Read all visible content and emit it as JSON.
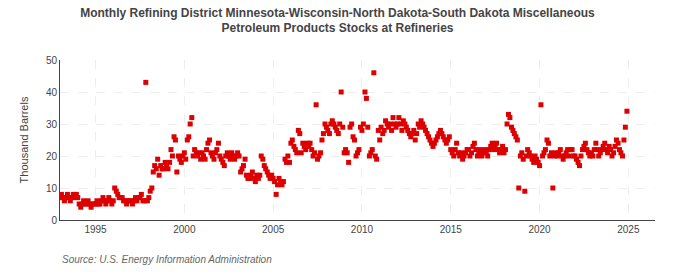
{
  "chart_data": {
    "type": "scatter",
    "title": "Monthly Refining District Minnesota-Wisconsin-North Dakota-South Dakota Miscellaneous\nPetroleum Products Stocks at Refineries",
    "ylabel": "Thousand Barrels",
    "annotations": [
      "Source: U.S. Energy Information Administration"
    ],
    "xlim": [
      1993.0,
      2026.5
    ],
    "ylim": [
      0,
      50
    ],
    "xticks": [
      1995,
      2000,
      2005,
      2010,
      2015,
      2020,
      2025
    ],
    "yticks": [
      0,
      10,
      20,
      30,
      40,
      50
    ],
    "grid": true,
    "color": "#dd0000",
    "marker": "square",
    "x": [
      1993.0,
      1993.08,
      1993.17,
      1993.25,
      1993.33,
      1993.42,
      1993.5,
      1993.58,
      1993.67,
      1993.75,
      1993.83,
      1993.92,
      1994.0,
      1994.08,
      1994.17,
      1994.25,
      1994.33,
      1994.42,
      1994.5,
      1994.58,
      1994.67,
      1994.75,
      1994.83,
      1994.92,
      1995.0,
      1995.08,
      1995.17,
      1995.25,
      1995.33,
      1995.42,
      1995.5,
      1995.58,
      1995.67,
      1995.75,
      1995.83,
      1995.92,
      1996.0,
      1996.08,
      1996.17,
      1996.25,
      1996.33,
      1996.42,
      1996.5,
      1996.58,
      1996.67,
      1996.75,
      1996.83,
      1996.92,
      1997.0,
      1997.08,
      1997.17,
      1997.25,
      1997.33,
      1997.42,
      1997.5,
      1997.58,
      1997.67,
      1997.75,
      1997.83,
      1997.92,
      1998.0,
      1998.08,
      1998.17,
      1998.25,
      1998.33,
      1998.42,
      1998.5,
      1998.58,
      1998.67,
      1998.75,
      1998.83,
      1998.92,
      1999.0,
      1999.08,
      1999.17,
      1999.25,
      1999.33,
      1999.42,
      1999.5,
      1999.58,
      1999.67,
      1999.75,
      1999.83,
      1999.92,
      2000.0,
      2000.08,
      2000.17,
      2000.25,
      2000.33,
      2000.42,
      2000.5,
      2000.58,
      2000.67,
      2000.75,
      2000.83,
      2000.92,
      2001.0,
      2001.08,
      2001.17,
      2001.25,
      2001.33,
      2001.42,
      2001.5,
      2001.58,
      2001.67,
      2001.75,
      2001.83,
      2001.92,
      2002.0,
      2002.08,
      2002.17,
      2002.25,
      2002.33,
      2002.42,
      2002.5,
      2002.58,
      2002.67,
      2002.75,
      2002.83,
      2002.92,
      2003.0,
      2003.08,
      2003.17,
      2003.25,
      2003.33,
      2003.42,
      2003.5,
      2003.58,
      2003.67,
      2003.75,
      2003.83,
      2003.92,
      2004.0,
      2004.08,
      2004.17,
      2004.25,
      2004.33,
      2004.42,
      2004.5,
      2004.58,
      2004.67,
      2004.75,
      2004.83,
      2004.92,
      2005.0,
      2005.08,
      2005.17,
      2005.25,
      2005.33,
      2005.42,
      2005.5,
      2005.58,
      2005.67,
      2005.75,
      2005.83,
      2005.92,
      2006.0,
      2006.08,
      2006.17,
      2006.25,
      2006.33,
      2006.42,
      2006.5,
      2006.58,
      2006.67,
      2006.75,
      2006.83,
      2006.92,
      2007.0,
      2007.08,
      2007.17,
      2007.25,
      2007.33,
      2007.42,
      2007.5,
      2007.58,
      2007.67,
      2007.75,
      2007.83,
      2007.92,
      2008.0,
      2008.08,
      2008.17,
      2008.25,
      2008.33,
      2008.42,
      2008.5,
      2008.58,
      2008.67,
      2008.75,
      2008.83,
      2008.92,
      2009.0,
      2009.08,
      2009.17,
      2009.25,
      2009.33,
      2009.42,
      2009.5,
      2009.58,
      2009.67,
      2009.75,
      2009.83,
      2009.92,
      2010.0,
      2010.08,
      2010.17,
      2010.25,
      2010.33,
      2010.42,
      2010.5,
      2010.58,
      2010.67,
      2010.75,
      2010.83,
      2010.92,
      2011.0,
      2011.08,
      2011.17,
      2011.25,
      2011.33,
      2011.42,
      2011.5,
      2011.58,
      2011.67,
      2011.75,
      2011.83,
      2011.92,
      2012.0,
      2012.08,
      2012.17,
      2012.25,
      2012.33,
      2012.42,
      2012.5,
      2012.58,
      2012.67,
      2012.75,
      2012.83,
      2012.92,
      2013.0,
      2013.08,
      2013.17,
      2013.25,
      2013.33,
      2013.42,
      2013.5,
      2013.58,
      2013.67,
      2013.75,
      2013.83,
      2013.92,
      2014.0,
      2014.08,
      2014.17,
      2014.25,
      2014.33,
      2014.42,
      2014.5,
      2014.58,
      2014.67,
      2014.75,
      2014.83,
      2014.92,
      2015.0,
      2015.08,
      2015.17,
      2015.25,
      2015.33,
      2015.42,
      2015.5,
      2015.58,
      2015.67,
      2015.75,
      2015.83,
      2015.92,
      2016.0,
      2016.08,
      2016.17,
      2016.25,
      2016.33,
      2016.42,
      2016.5,
      2016.58,
      2016.67,
      2016.75,
      2016.83,
      2016.92,
      2017.0,
      2017.08,
      2017.17,
      2017.25,
      2017.33,
      2017.42,
      2017.5,
      2017.58,
      2017.67,
      2017.75,
      2017.83,
      2017.92,
      2018.0,
      2018.08,
      2018.17,
      2018.25,
      2018.33,
      2018.42,
      2018.5,
      2018.58,
      2018.67,
      2018.75,
      2018.83,
      2018.92,
      2019.0,
      2019.08,
      2019.17,
      2019.25,
      2019.33,
      2019.42,
      2019.5,
      2019.58,
      2019.67,
      2019.75,
      2019.83,
      2019.92,
      2020.0,
      2020.08,
      2020.17,
      2020.25,
      2020.33,
      2020.42,
      2020.5,
      2020.58,
      2020.67,
      2020.75,
      2020.83,
      2020.92,
      2021.0,
      2021.08,
      2021.17,
      2021.25,
      2021.33,
      2021.42,
      2021.5,
      2021.58,
      2021.67,
      2021.75,
      2021.83,
      2021.92,
      2022.0,
      2022.08,
      2022.17,
      2022.25,
      2022.33,
      2022.42,
      2022.5,
      2022.58,
      2022.67,
      2022.75,
      2022.83,
      2022.92,
      2023.0,
      2023.08,
      2023.17,
      2023.25,
      2023.33,
      2023.42,
      2023.5,
      2023.58,
      2023.67,
      2023.75,
      2023.83,
      2023.92,
      2024.0,
      2024.08,
      2024.17,
      2024.25,
      2024.33,
      2024.42,
      2024.5,
      2024.58,
      2024.67,
      2024.75,
      2024.83,
      2024.92
    ],
    "values": [
      7,
      8,
      7,
      6,
      7,
      8,
      7,
      6,
      7,
      8,
      7,
      8,
      7,
      5,
      4,
      5,
      6,
      5,
      5,
      6,
      5,
      4,
      5,
      5,
      5,
      6,
      5,
      5,
      6,
      7,
      6,
      5,
      6,
      7,
      6,
      5,
      6,
      10,
      9,
      8,
      7,
      7,
      7,
      6,
      6,
      5,
      6,
      6,
      6,
      5,
      6,
      7,
      6,
      7,
      7,
      8,
      6,
      6,
      43,
      6,
      7,
      9,
      10,
      15,
      17,
      16,
      19,
      14,
      17,
      16,
      16,
      18,
      17,
      16,
      18,
      22,
      20,
      26,
      25,
      15,
      20,
      19,
      18,
      20,
      21,
      19,
      25,
      26,
      30,
      32,
      20,
      22,
      21,
      20,
      21,
      19,
      21,
      20,
      19,
      22,
      24,
      25,
      21,
      20,
      19,
      21,
      22,
      24,
      20,
      19,
      18,
      17,
      20,
      21,
      20,
      19,
      21,
      20,
      19,
      20,
      21,
      20,
      15,
      16,
      17,
      19,
      14,
      13,
      13,
      14,
      15,
      13,
      12,
      14,
      13,
      14,
      20,
      19,
      17,
      16,
      15,
      14,
      13,
      14,
      13,
      12,
      8,
      11,
      13,
      12,
      11,
      12,
      19,
      18,
      20,
      18,
      24,
      25,
      23,
      22,
      21,
      28,
      27,
      21,
      24,
      23,
      22,
      24,
      23,
      24,
      22,
      20,
      21,
      36,
      19,
      20,
      21,
      25,
      27,
      30,
      29,
      28,
      27,
      30,
      31,
      30,
      29,
      28,
      27,
      30,
      40,
      29,
      21,
      22,
      21,
      18,
      29,
      30,
      26,
      25,
      20,
      21,
      22,
      29,
      28,
      30,
      40,
      38,
      29,
      20,
      21,
      22,
      46,
      20,
      19,
      28,
      25,
      29,
      27,
      28,
      31,
      30,
      29,
      30,
      28,
      32,
      30,
      29,
      30,
      32,
      30,
      28,
      31,
      30,
      29,
      28,
      27,
      26,
      27,
      28,
      25,
      27,
      30,
      29,
      31,
      30,
      29,
      28,
      27,
      26,
      25,
      24,
      23,
      24,
      25,
      26,
      27,
      28,
      27,
      26,
      25,
      24,
      25,
      26,
      22,
      21,
      20,
      22,
      24,
      21,
      20,
      21,
      19,
      20,
      21,
      22,
      22,
      20,
      21,
      23,
      24,
      22,
      20,
      21,
      22,
      20,
      21,
      22,
      21,
      20,
      22,
      23,
      24,
      22,
      23,
      24,
      22,
      21,
      22,
      23,
      21,
      22,
      30,
      33,
      32,
      29,
      28,
      27,
      26,
      25,
      10,
      20,
      21,
      19,
      9,
      20,
      22,
      21,
      20,
      19,
      18,
      20,
      19,
      18,
      17,
      36,
      20,
      21,
      22,
      25,
      24,
      20,
      21,
      10,
      20,
      21,
      20,
      21,
      22,
      20,
      19,
      20,
      21,
      22,
      20,
      22,
      22,
      20,
      20,
      19,
      18,
      17,
      20,
      22,
      23,
      24,
      22,
      21,
      20,
      21,
      20,
      22,
      24,
      22,
      20,
      21,
      22,
      23,
      24,
      22,
      21,
      23,
      22,
      20,
      21,
      23,
      25,
      24,
      22,
      21,
      20,
      25,
      29,
      34
    ]
  }
}
